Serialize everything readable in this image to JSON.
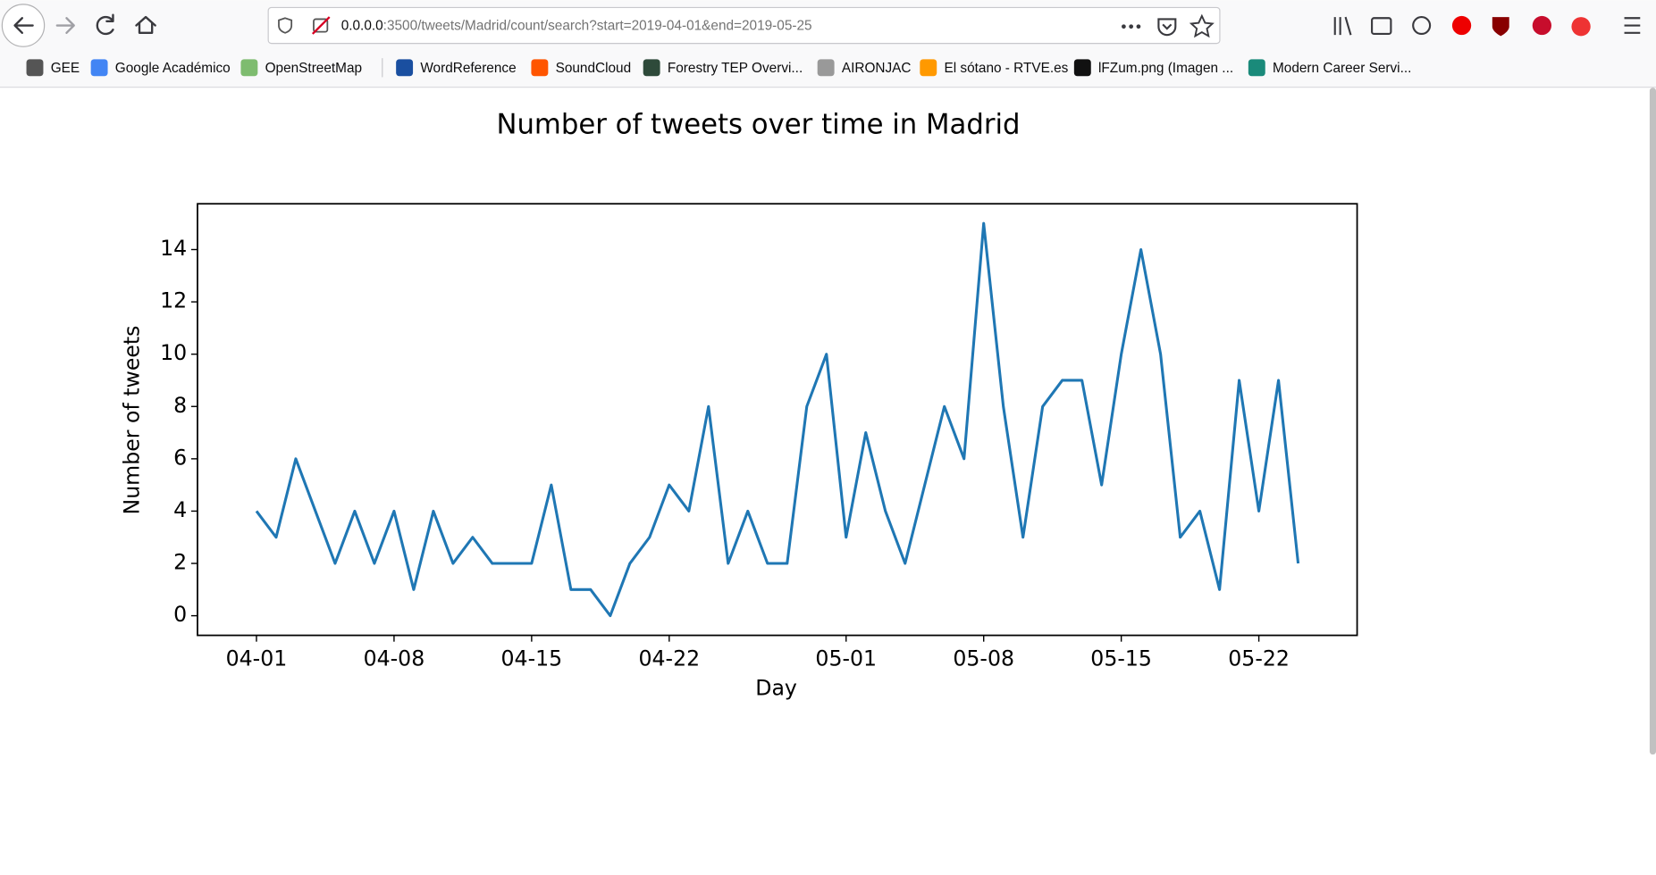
{
  "browser": {
    "url_host": "0.0.0.0",
    "url_path": ":3500/tweets/Madrid/count/search?start=2019-04-01&end=2019-05-25",
    "bookmarks": [
      "GEE",
      "Google Académico",
      "OpenStreetMap",
      "WordReference",
      "SoundCloud",
      "Forestry TEP Overvi...",
      "AIRONJAC",
      "El sótano - RTVE.es",
      "lFZum.png (Imagen ...",
      "Modern Career Servi..."
    ]
  },
  "chart_data": {
    "type": "line",
    "title": "Number of tweets over time in Madrid",
    "xlabel": "Day",
    "ylabel": "Number of tweets",
    "color": "#1f77b4",
    "x": [
      "04-01",
      "04-02",
      "04-03",
      "04-04",
      "04-05",
      "04-06",
      "04-07",
      "04-08",
      "04-09",
      "04-10",
      "04-11",
      "04-12",
      "04-13",
      "04-14",
      "04-15",
      "04-16",
      "04-17",
      "04-18",
      "04-19",
      "04-20",
      "04-21",
      "04-22",
      "04-23",
      "04-24",
      "04-25",
      "04-26",
      "04-27",
      "04-28",
      "04-29",
      "04-30",
      "05-01",
      "05-02",
      "05-03",
      "05-04",
      "05-05",
      "05-06",
      "05-07",
      "05-08",
      "05-09",
      "05-10",
      "05-11",
      "05-12",
      "05-13",
      "05-14",
      "05-15",
      "05-16",
      "05-17",
      "05-18",
      "05-19",
      "05-20",
      "05-21",
      "05-22",
      "05-23",
      "05-24"
    ],
    "values": [
      4,
      3,
      6,
      4,
      2,
      4,
      2,
      4,
      1,
      4,
      2,
      3,
      2,
      2,
      2,
      5,
      1,
      1,
      0,
      2,
      3,
      5,
      4,
      8,
      2,
      4,
      2,
      2,
      8,
      10,
      3,
      7,
      4,
      2,
      5,
      8,
      6,
      15,
      8,
      3,
      8,
      9,
      9,
      5,
      10,
      14,
      10,
      3,
      4,
      1,
      9,
      4,
      9,
      2
    ],
    "xlim": [
      "03-29",
      "05-27"
    ],
    "xticks": [
      "04-01",
      "04-08",
      "04-15",
      "04-22",
      "05-01",
      "05-08",
      "05-15",
      "05-22"
    ],
    "ylim": [
      -0.75,
      15.75
    ],
    "yticks": [
      0,
      2,
      4,
      6,
      8,
      10,
      12,
      14
    ]
  }
}
